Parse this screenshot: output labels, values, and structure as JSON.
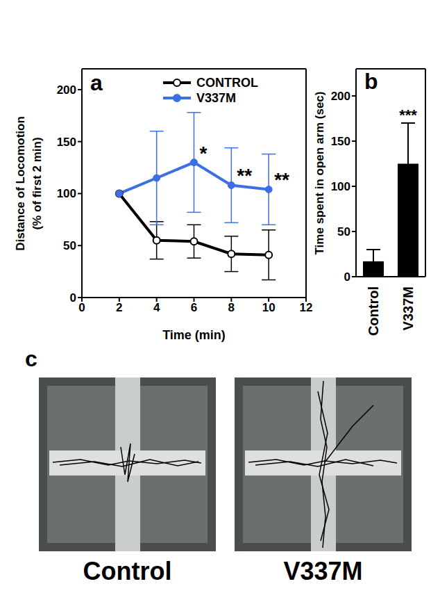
{
  "chart_data": [
    {
      "title": "a",
      "type": "line",
      "x": [
        2,
        4,
        6,
        8,
        10
      ],
      "xlim": [
        0,
        12
      ],
      "xticks": [
        0,
        2,
        4,
        6,
        8,
        10,
        12
      ],
      "ylim": [
        0,
        220
      ],
      "yticks": [
        0,
        50,
        100,
        150,
        200
      ],
      "xlabel": "Time (min)",
      "ylabel": [
        "Distance of Locomotion",
        "(% of first 2 min)"
      ],
      "legend": "top-right",
      "series": [
        {
          "name": "CONTROL",
          "color": "#000000",
          "marker": "open_circle",
          "values": [
            100,
            55,
            54,
            42,
            41
          ],
          "errors": [
            null,
            18,
            16,
            17,
            24
          ]
        },
        {
          "name": "V337M",
          "color": "#3d6ee8",
          "marker": "circle",
          "values": [
            100,
            115,
            130,
            108,
            104
          ],
          "errors": [
            null,
            45,
            48,
            36,
            34
          ],
          "significance": [
            null,
            null,
            "*",
            "**",
            "**"
          ]
        }
      ]
    },
    {
      "title": "b",
      "type": "bar",
      "categories": [
        "Control",
        "V337M"
      ],
      "values": [
        17,
        125
      ],
      "errors": [
        13,
        45
      ],
      "significance": [
        null,
        "***"
      ],
      "color": "#000000",
      "ylim": [
        0,
        230
      ],
      "yticks": [
        0,
        50,
        100,
        150,
        200
      ],
      "ylabel": "Time spent in open arm (sec)"
    }
  ],
  "panel_c": {
    "title": "c",
    "images": [
      "Control",
      "V337M"
    ]
  }
}
